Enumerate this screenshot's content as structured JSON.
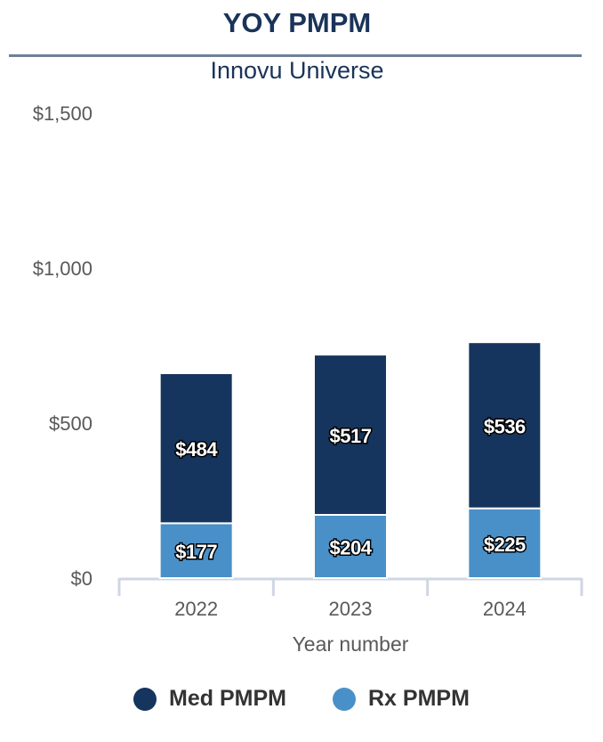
{
  "chart_data": {
    "type": "bar",
    "stacked": true,
    "title": "YOY PMPM",
    "subtitle": "Innovu Universe",
    "xlabel": "Year number",
    "ylabel": "",
    "categories": [
      "2022",
      "2023",
      "2024"
    ],
    "ylim": [
      0,
      1500
    ],
    "yticks": [
      0,
      500,
      1000,
      1500
    ],
    "ytick_labels": [
      "$0",
      "$500",
      "$1,000",
      "$1,500"
    ],
    "grid": false,
    "legend_position": "bottom",
    "series": [
      {
        "name": "Rx PMPM",
        "values": [
          177,
          204,
          225
        ],
        "labels": [
          "$177",
          "$204",
          "$225"
        ],
        "color": "#4a90c8"
      },
      {
        "name": "Med PMPM",
        "values": [
          484,
          517,
          536
        ],
        "labels": [
          "$484",
          "$517",
          "$536"
        ],
        "color": "#16355e"
      }
    ],
    "legend_order": [
      "Med PMPM",
      "Rx PMPM"
    ]
  }
}
